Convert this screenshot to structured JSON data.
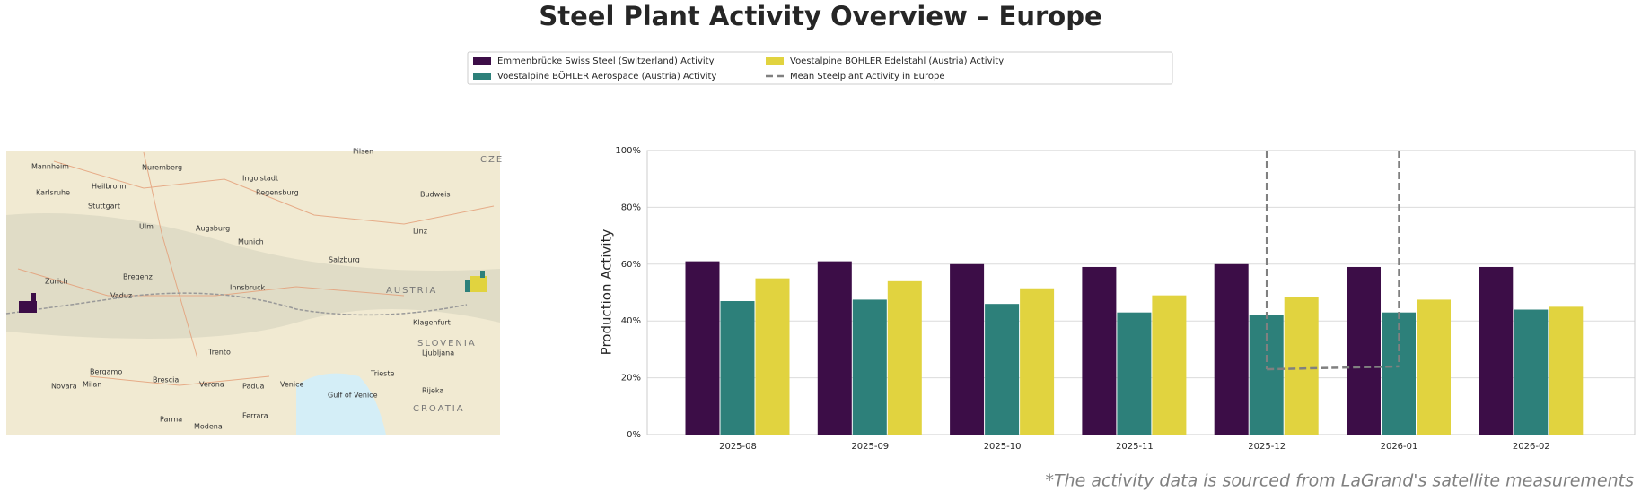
{
  "chart_data": {
    "type": "bar",
    "title": "Steel Plant Activity Overview – Europe",
    "y_label": "Production Activity",
    "footnote": "*The activity data is sourced from LaGrand's satellite measurements",
    "categories": [
      "2025-08",
      "2025-09",
      "2025-10",
      "2025-11",
      "2025-12",
      "2026-01",
      "2026-02"
    ],
    "series": [
      {
        "name": "Emmenbrücke Swiss Steel (Switzerland) Activity",
        "color": "#3c0d47",
        "values": [
          61,
          61,
          60,
          59,
          60,
          59,
          59
        ]
      },
      {
        "name": "Voestalpine BÖHLER Aerospace (Austria) Activity",
        "color": "#2d807a",
        "values": [
          47,
          47.5,
          46,
          43,
          42,
          43,
          44
        ]
      },
      {
        "name": "Voestalpine BÖHLER Edelstahl (Austria) Activity",
        "color": "#e1d33f",
        "values": [
          55,
          54,
          51.5,
          49,
          48.5,
          47.5,
          45
        ]
      },
      {
        "name": "Mean Steelplant Activity in Europe",
        "color": "#808080",
        "type": "line",
        "dashed": true,
        "values": [
          null,
          null,
          null,
          null,
          23,
          24,
          null
        ]
      }
    ],
    "ylim": [
      0,
      100
    ],
    "yticks": [
      {
        "value": 0,
        "label": "0%"
      },
      {
        "value": 20,
        "label": "20%"
      },
      {
        "value": 40,
        "label": "40%"
      },
      {
        "value": 60,
        "label": "60%"
      },
      {
        "value": 80,
        "label": "80%"
      },
      {
        "value": 100,
        "label": "100%"
      }
    ],
    "grid": true,
    "legend": "top",
    "map": {
      "labels": [
        "Mannheim",
        "Nuremberg",
        "Pilsen",
        "CZE",
        "Karlsruhe",
        "Heilbronn",
        "Stuttgart",
        "Ingolstadt",
        "Regensburg",
        "Budweis",
        "Ulm",
        "Augsburg",
        "Munich",
        "Linz",
        "Salzburg",
        "Zurich",
        "Bregenz",
        "Vaduz",
        "Innsbruck",
        "AUSTRIA",
        "Klagenfurt",
        "SLOVENIA",
        "Ljubljana",
        "Trento",
        "Bergamo",
        "Brescia",
        "Verona",
        "Padua",
        "Venice",
        "Milan",
        "Novara",
        "Trieste",
        "Rijeka",
        "CROATIA",
        "Parma",
        "Modena",
        "Ferrara",
        "Gulf of Venice"
      ]
    }
  }
}
